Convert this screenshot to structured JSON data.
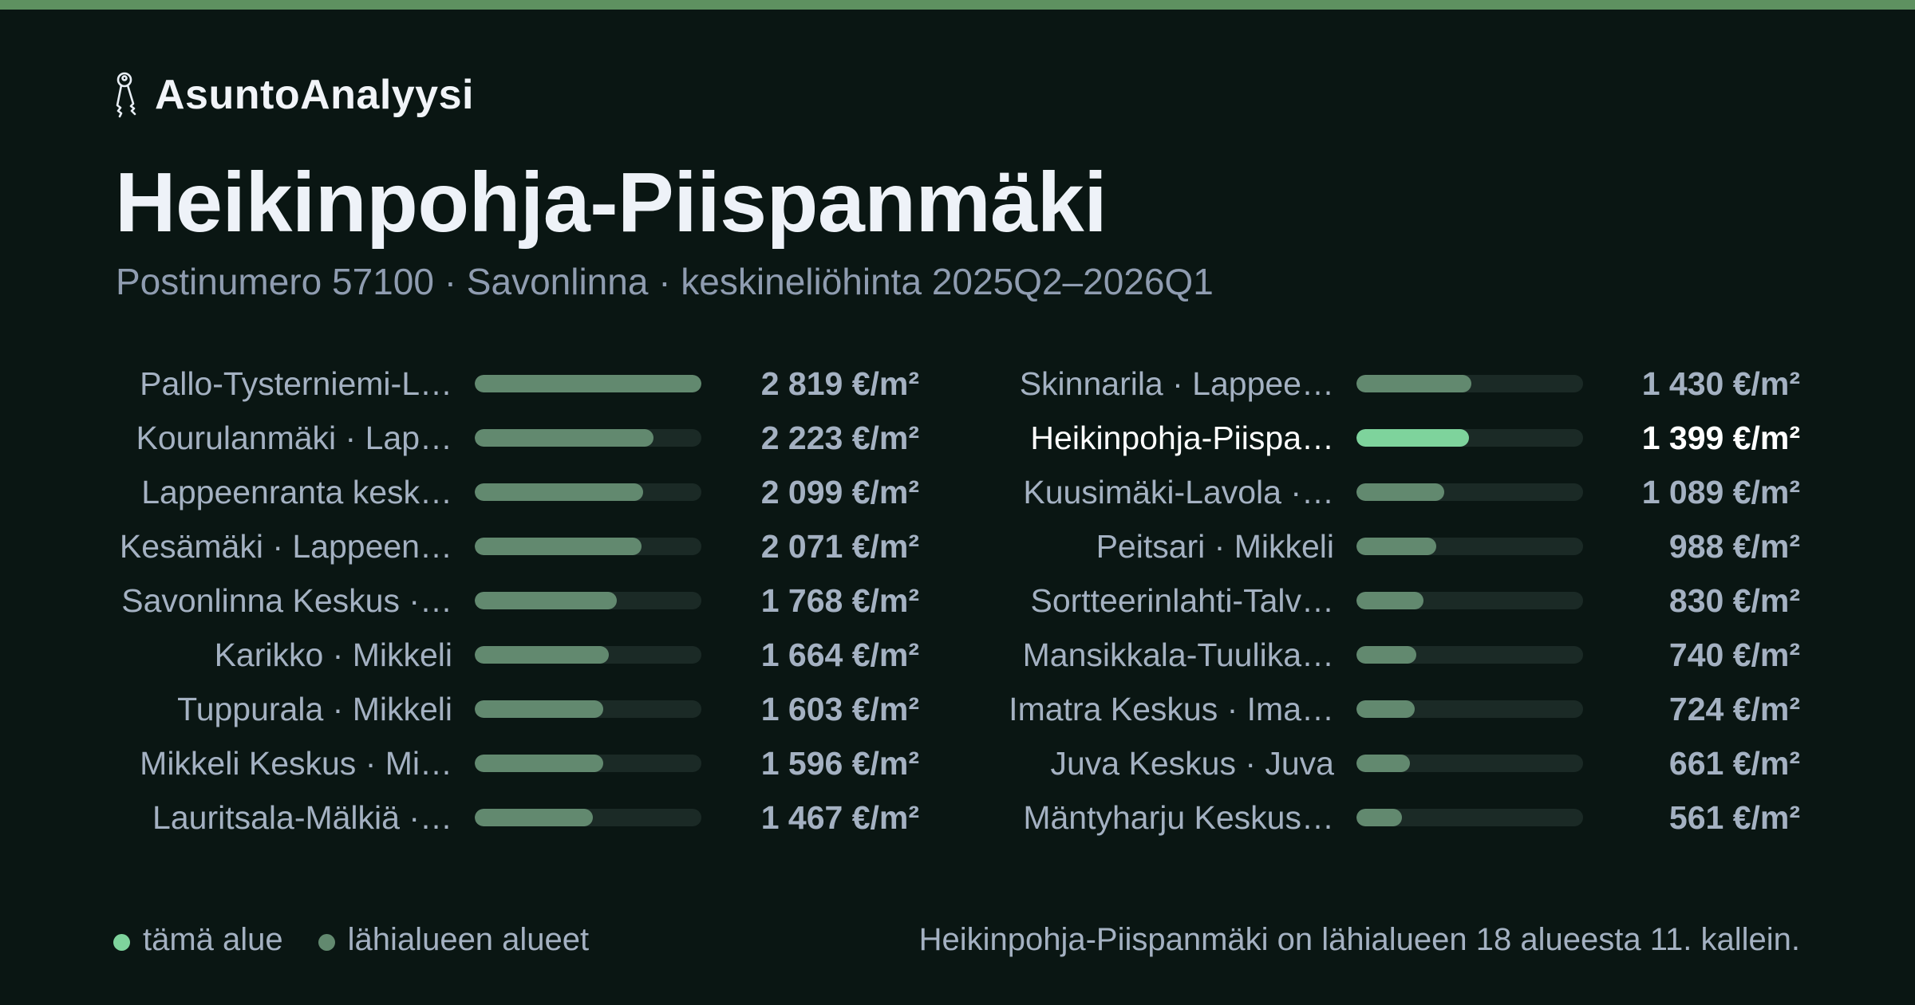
{
  "brand": {
    "name": "AsuntoAnalyysi",
    "icon": "keys-icon"
  },
  "title": "Heikinpohja-Piispanmäki",
  "subtitle": "Postinumero 57100 · Savonlinna · keskineliöhinta 2025Q2–2026Q1",
  "colors": {
    "background": "#0a1613",
    "top_accent": "#5e9160",
    "bar_nearby": "#62896f",
    "bar_current": "#7ed39c",
    "track": "#1b2a26"
  },
  "chart_data": {
    "type": "bar",
    "orientation": "horizontal",
    "unit": "€/m²",
    "xlim": [
      0,
      2819
    ],
    "current_index": 10,
    "categories": [
      "Pallo-Tysterniemi-L…",
      "Kourulanmäki · Lap…",
      "Lappeenranta kesk…",
      "Kesämäki · Lappeen…",
      "Savonlinna Keskus ·…",
      "Karikko · Mikkeli",
      "Tuppurala · Mikkeli",
      "Mikkeli Keskus · Mi…",
      "Lauritsala-Mälkiä ·…",
      "Skinnarila · Lappee…",
      "Heikinpohja-Piispa…",
      "Kuusimäki-Lavola ·…",
      "Peitsari · Mikkeli",
      "Sortteerinlahti-Talv…",
      "Mansikkala-Tuulika…",
      "Imatra Keskus · Ima…",
      "Juva Keskus · Juva",
      "Mäntyharju Keskus…"
    ],
    "values": [
      2819,
      2223,
      2099,
      2071,
      1768,
      1664,
      1603,
      1596,
      1467,
      1430,
      1399,
      1089,
      988,
      830,
      740,
      724,
      661,
      561
    ],
    "value_labels": [
      "2 819 €/m²",
      "2 223 €/m²",
      "2 099 €/m²",
      "2 071 €/m²",
      "1 768 €/m²",
      "1 664 €/m²",
      "1 603 €/m²",
      "1 596 €/m²",
      "1 467 €/m²",
      "1 430 €/m²",
      "1 399 €/m²",
      "1 089 €/m²",
      "988 €/m²",
      "830 €/m²",
      "740 €/m²",
      "724 €/m²",
      "661 €/m²",
      "561 €/m²"
    ]
  },
  "legend": {
    "current_label": "tämä alue",
    "nearby_label": "lähialueen alueet"
  },
  "summary": "Heikinpohja-Piispanmäki on lähialueen 18 alueesta 11. kallein."
}
